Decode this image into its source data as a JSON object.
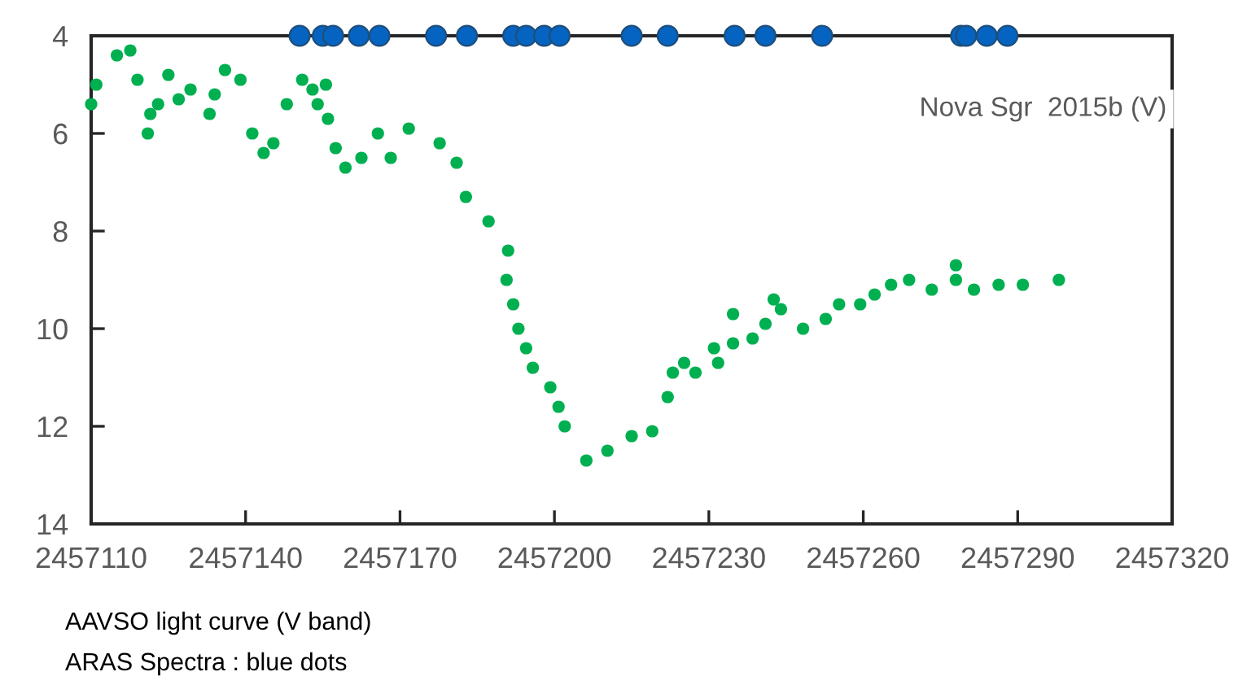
{
  "chart_data": {
    "type": "scatter",
    "title": "Nova Sgr  2015b (V)",
    "series": [
      {
        "color": "#00b050",
        "x": [
          2457110,
          2457111,
          2457115,
          2457117.6,
          2457119,
          2457121,
          2457121.5,
          2457123,
          2457125,
          2457127,
          2457129.3,
          2457133,
          2457134,
          2457136,
          2457139,
          2457141.3,
          2457143.5,
          2457145.4,
          2457148,
          2457151,
          2457153,
          2457154,
          2457155.6,
          2457156,
          2457157.5,
          2457159.4,
          2457162.5,
          2457165.7,
          2457168.2,
          2457171.7,
          2457177.7,
          2457181,
          2457182.8,
          2457187.2,
          2457191,
          2457190.7,
          2457192,
          2457193,
          2457194.5,
          2457195.8,
          2457199.2,
          2457200.8,
          2457202,
          2457206.2,
          2457210.3,
          2457215,
          2457219,
          2457222,
          2457223,
          2457225.2,
          2457227.4,
          2457231,
          2457231.8,
          2457234.7,
          2457234.7,
          2457238.5,
          2457241,
          2457242.6,
          2457244,
          2457248.3,
          2457252.7,
          2457255.3,
          2457259.4,
          2457262.2,
          2457265.4,
          2457268.9,
          2457273.3,
          2457278,
          2457278,
          2457281.5,
          2457286.3,
          2457291,
          2457298
        ],
        "values": [
          5.4,
          5.0,
          4.4,
          4.3,
          4.9,
          6.0,
          5.6,
          5.4,
          4.8,
          5.3,
          5.1,
          5.6,
          5.2,
          4.7,
          4.9,
          6.0,
          6.4,
          6.2,
          5.4,
          4.9,
          5.1,
          5.4,
          5.0,
          5.7,
          6.3,
          6.7,
          6.5,
          6.0,
          6.5,
          5.9,
          6.2,
          6.6,
          7.3,
          7.8,
          8.4,
          9.0,
          9.5,
          10.0,
          10.4,
          10.8,
          11.2,
          11.6,
          12.0,
          12.7,
          12.5,
          12.2,
          12.1,
          11.4,
          10.9,
          10.7,
          10.9,
          10.4,
          10.7,
          9.7,
          10.3,
          10.2,
          9.9,
          9.4,
          9.6,
          10.0,
          9.8,
          9.5,
          9.5,
          9.3,
          9.1,
          9.0,
          9.2,
          8.7,
          9.0,
          9.2,
          9.1,
          9.1,
          9.0
        ]
      },
      {
        "color": "#0563c1",
        "x": [
          2457150.5,
          2457155,
          2457157,
          2457162,
          2457166,
          2457177,
          2457183,
          2457192,
          2457194.5,
          2457198,
          2457201,
          2457215,
          2457222,
          2457235,
          2457241,
          2457252,
          2457279,
          2457280,
          2457284,
          2457288
        ],
        "values": [
          4,
          4,
          4,
          4,
          4,
          4,
          4,
          4,
          4,
          4,
          4,
          4,
          4,
          4,
          4,
          4,
          4,
          4,
          4,
          4
        ]
      }
    ],
    "xlim": [
      2457110,
      2457320
    ],
    "xticks": [
      2457110,
      2457140,
      2457170,
      2457200,
      2457230,
      2457260,
      2457290,
      2457320
    ],
    "ylim": [
      14,
      4
    ],
    "yticks": [
      4,
      6,
      8,
      10,
      12,
      14
    ],
    "marker": "circle",
    "grid": false,
    "legend": false,
    "annotations": [
      "AAVSO light curve (V band)",
      "ARAS Spectra : blue dots"
    ]
  }
}
